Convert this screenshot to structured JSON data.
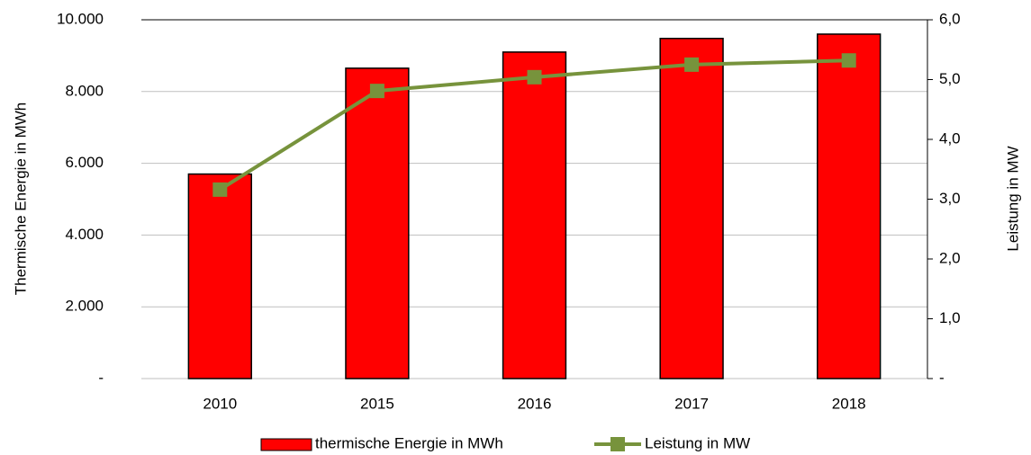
{
  "chart_data": {
    "type": "bar",
    "categories": [
      "2010",
      "2015",
      "2016",
      "2017",
      "2018"
    ],
    "series": [
      {
        "name": "thermische Energie in MWh",
        "type": "bar",
        "color": "#ff0000",
        "values": [
          5700,
          8650,
          9100,
          9480,
          9600
        ]
      },
      {
        "name": "Leistung in MW",
        "type": "line",
        "axis": "y2",
        "color": "#77933c",
        "values": [
          3.16,
          4.81,
          5.04,
          5.25,
          5.32
        ]
      }
    ],
    "ylabel": "Thermische Energie in MWh",
    "y2label": "Leistung in MW",
    "ylim": [
      0,
      10000
    ],
    "yticks": [
      {
        "value": 0,
        "label": "-"
      },
      {
        "value": 2000,
        "label": "2.000"
      },
      {
        "value": 4000,
        "label": "4.000"
      },
      {
        "value": 6000,
        "label": "6.000"
      },
      {
        "value": 8000,
        "label": "8.000"
      },
      {
        "value": 10000,
        "label": "10.000"
      }
    ],
    "y2lim": [
      0,
      6
    ],
    "y2ticks": [
      {
        "value": 0,
        "label": "-"
      },
      {
        "value": 1,
        "label": "1,0"
      },
      {
        "value": 2,
        "label": "2,0"
      },
      {
        "value": 3,
        "label": "3,0"
      },
      {
        "value": 4,
        "label": "4,0"
      },
      {
        "value": 5,
        "label": "5,0"
      },
      {
        "value": 6,
        "label": "6,0"
      }
    ],
    "grid": true,
    "legend": "bottom"
  }
}
